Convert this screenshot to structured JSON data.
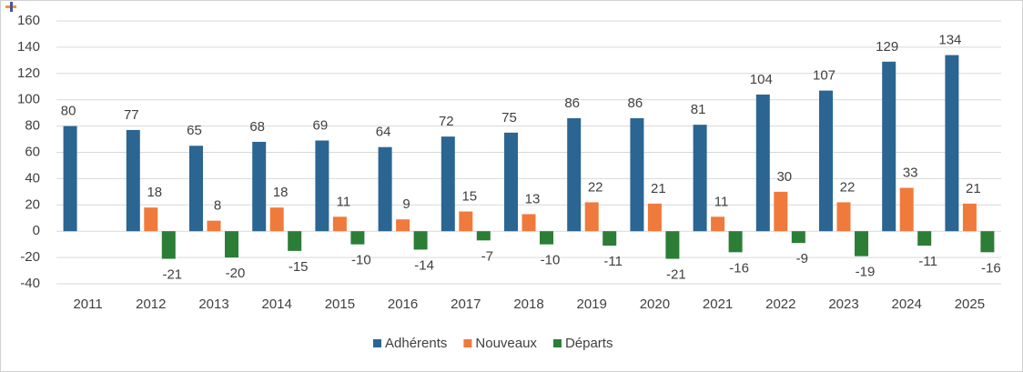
{
  "chart_data": {
    "type": "bar",
    "categories": [
      "2011",
      "2012",
      "2013",
      "2014",
      "2015",
      "2016",
      "2017",
      "2018",
      "2019",
      "2020",
      "2021",
      "2022",
      "2023",
      "2024",
      "2025"
    ],
    "series": [
      {
        "name": "Adhérents",
        "color": "#2b6592",
        "values": [
          80,
          77,
          65,
          68,
          69,
          64,
          72,
          75,
          86,
          86,
          81,
          104,
          107,
          129,
          134
        ]
      },
      {
        "name": "Nouveaux",
        "color": "#ef7a3c",
        "values": [
          null,
          18,
          8,
          18,
          11,
          9,
          15,
          13,
          22,
          21,
          11,
          30,
          22,
          33,
          21
        ]
      },
      {
        "name": "Départs",
        "color": "#2c7d36",
        "values": [
          null,
          -21,
          -20,
          -15,
          -10,
          -14,
          -7,
          -10,
          -11,
          -21,
          -16,
          -9,
          -19,
          -11,
          -16
        ]
      }
    ],
    "ylim": [
      -40,
      160
    ],
    "yticks": [
      -40,
      -20,
      0,
      20,
      40,
      60,
      80,
      100,
      120,
      140,
      160
    ],
    "grid": true,
    "legend": "bottom"
  }
}
